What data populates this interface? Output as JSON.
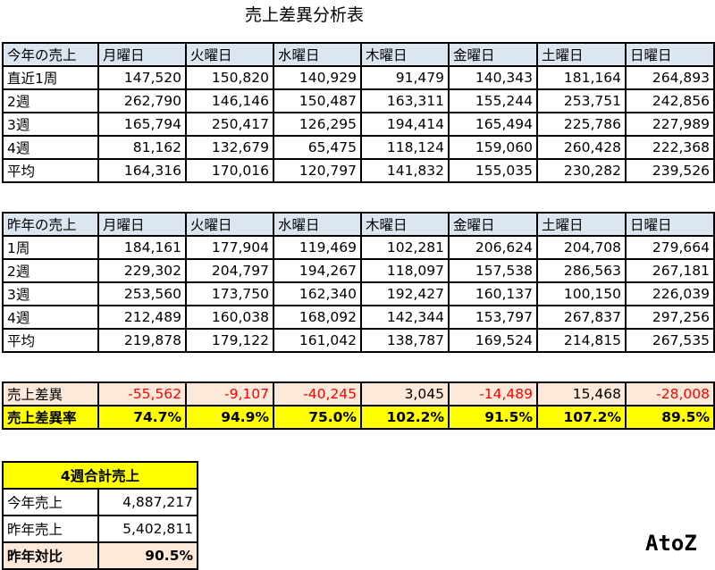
{
  "title": "売上差異分析表",
  "days": [
    "月曜日",
    "火曜日",
    "水曜日",
    "木曜日",
    "金曜日",
    "土曜日",
    "日曜日"
  ],
  "this_year": {
    "header": "今年の売上",
    "rows": [
      {
        "label": "直近1周",
        "values": [
          "147,520",
          "150,820",
          "140,929",
          "91,479",
          "140,343",
          "181,164",
          "264,893"
        ]
      },
      {
        "label": "2週",
        "values": [
          "262,790",
          "146,146",
          "150,487",
          "163,311",
          "155,244",
          "253,751",
          "242,856"
        ]
      },
      {
        "label": "3週",
        "values": [
          "165,794",
          "250,417",
          "126,295",
          "194,414",
          "165,494",
          "225,786",
          "227,989"
        ]
      },
      {
        "label": "4週",
        "values": [
          "81,162",
          "132,679",
          "65,475",
          "118,124",
          "159,060",
          "260,428",
          "222,368"
        ]
      }
    ],
    "avg": {
      "label": "平均",
      "values": [
        "164,316",
        "170,016",
        "120,797",
        "141,832",
        "155,035",
        "230,282",
        "239,526"
      ]
    }
  },
  "last_year": {
    "header": "昨年の売上",
    "rows": [
      {
        "label": "1周",
        "values": [
          "184,161",
          "177,904",
          "119,469",
          "102,281",
          "206,624",
          "204,708",
          "279,664"
        ]
      },
      {
        "label": "2週",
        "values": [
          "229,302",
          "204,797",
          "194,267",
          "118,097",
          "157,538",
          "286,563",
          "267,181"
        ]
      },
      {
        "label": "3週",
        "values": [
          "253,560",
          "173,750",
          "162,340",
          "192,427",
          "160,137",
          "100,150",
          "226,039"
        ]
      },
      {
        "label": "4週",
        "values": [
          "212,489",
          "160,038",
          "168,092",
          "142,344",
          "153,797",
          "267,837",
          "297,256"
        ]
      }
    ],
    "avg": {
      "label": "平均",
      "values": [
        "219,878",
        "179,122",
        "161,042",
        "138,787",
        "169,524",
        "214,815",
        "267,535"
      ]
    }
  },
  "diff": {
    "label": "売上差異",
    "values": [
      "-55,562",
      "-9,107",
      "-40,245",
      "3,045",
      "-14,489",
      "15,468",
      "-28,008"
    ]
  },
  "rate": {
    "label": "売上差異率",
    "values": [
      "74.7%",
      "94.9%",
      "75.0%",
      "102.2%",
      "91.5%",
      "107.2%",
      "89.5%"
    ]
  },
  "summary": {
    "title": "4週合計売上",
    "rows": [
      {
        "label": "今年売上",
        "value": "4,887,217"
      },
      {
        "label": "昨年売上",
        "value": "5,402,811"
      },
      {
        "label": "昨年対比",
        "value": "90.5%"
      }
    ]
  },
  "logo": "AtoZ",
  "colors": {
    "header_bg": "#dce6f1",
    "diff_bg": "#fde9d9",
    "rate_bg": "#ffff00",
    "negative": "#ff0000"
  }
}
